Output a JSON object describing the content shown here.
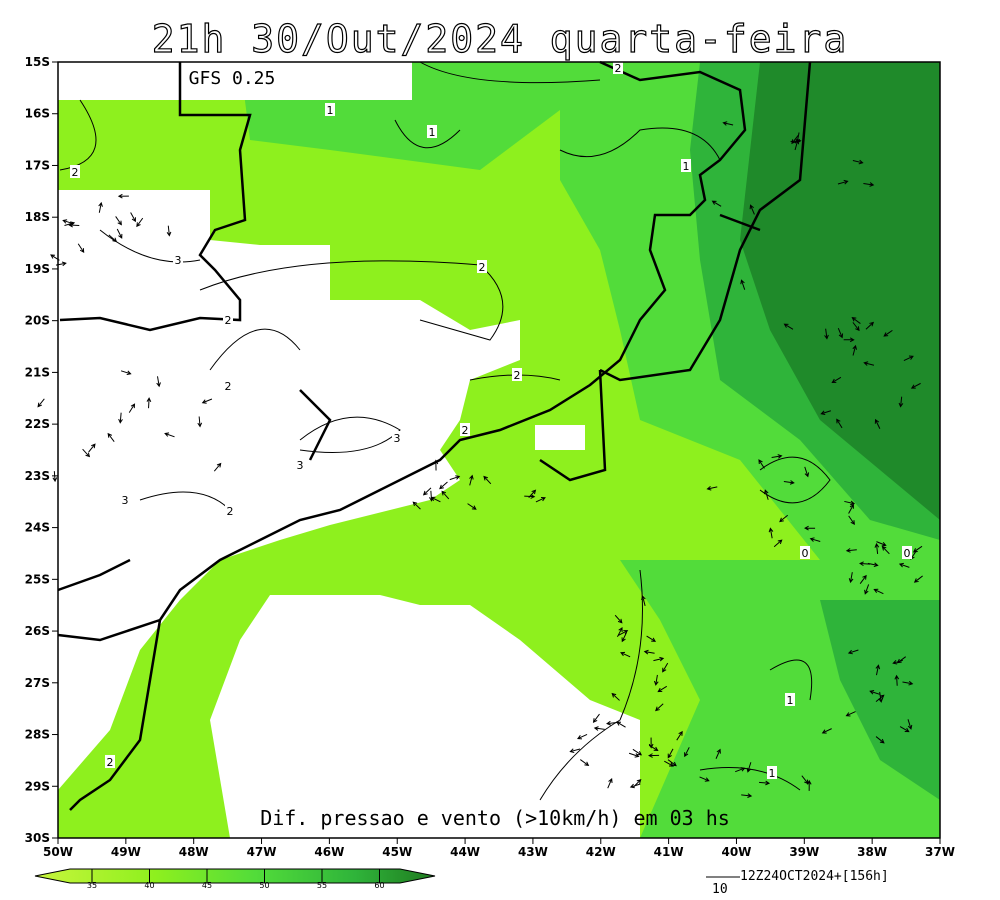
{
  "header": {
    "title": "21h 30/Out/2024 quarta-feira",
    "model": "GFS 0.25"
  },
  "map": {
    "lat_labels": [
      "15S",
      "16S",
      "17S",
      "18S",
      "19S",
      "20S",
      "21S",
      "22S",
      "23S",
      "24S",
      "25S",
      "26S",
      "27S",
      "28S",
      "29S",
      "30S"
    ],
    "lon_labels": [
      "50W",
      "49W",
      "48W",
      "47W",
      "46W",
      "45W",
      "44W",
      "43W",
      "42W",
      "41W",
      "40W",
      "39W",
      "38W",
      "37W"
    ],
    "contour_labels": [
      "1",
      "1",
      "1",
      "1",
      "1",
      "2",
      "2",
      "2",
      "2",
      "2",
      "2",
      "2",
      "2",
      "2",
      "3",
      "3",
      "3",
      "3",
      "0",
      "0"
    ],
    "caption": "Dif. pressao e vento (>10km/h) em 03 hs"
  },
  "colorbar": {
    "labels": [
      "35",
      "40",
      "45",
      "50",
      "55",
      "60"
    ]
  },
  "footer": {
    "run": "12Z24OCT2024+[156h]",
    "vector_scale": "10"
  }
}
